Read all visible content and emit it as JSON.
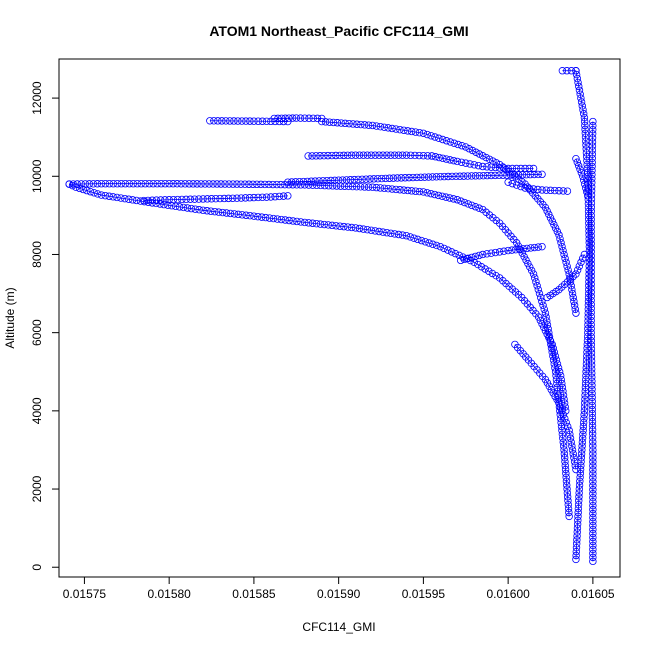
{
  "chart_data": {
    "type": "scatter",
    "title": "ATOM1 Northeast_Pacific CFC114_GMI",
    "xlabel": "CFC114_GMI",
    "ylabel": "Altitude (m)",
    "xlim": [
      0.015735,
      0.016066
    ],
    "ylim": [
      -250,
      13000
    ],
    "x_ticks": [
      0.01575,
      0.0158,
      0.01585,
      0.0159,
      0.01595,
      0.016,
      0.01605
    ],
    "x_tick_labels": [
      "0.01575",
      "0.01580",
      "0.01585",
      "0.01590",
      "0.01595",
      "0.01600",
      "0.01605"
    ],
    "y_ticks": [
      0,
      2000,
      4000,
      6000,
      8000,
      10000,
      12000
    ],
    "y_tick_labels": [
      "0",
      "2000",
      "4000",
      "6000",
      "8000",
      "10000",
      "12000"
    ],
    "grid": false,
    "legend": "none",
    "marker": "open-circle",
    "color": "#0000ff",
    "segments": [
      {
        "points": [
          [
            0.01604,
            200
          ],
          [
            0.016042,
            2000
          ],
          [
            0.016045,
            4000
          ],
          [
            0.016047,
            6000
          ],
          [
            0.016048,
            8000
          ],
          [
            0.016047,
            10000
          ],
          [
            0.016045,
            11500
          ],
          [
            0.01604,
            12700
          ]
        ]
      },
      {
        "points": [
          [
            0.01605,
            150
          ],
          [
            0.01605,
            3000
          ],
          [
            0.016049,
            6000
          ],
          [
            0.016049,
            9000
          ],
          [
            0.01605,
            11400
          ]
        ]
      },
      {
        "points": [
          [
            0.016032,
            12700
          ],
          [
            0.01604,
            12700
          ]
        ]
      },
      {
        "points": [
          [
            0.016036,
            1300
          ],
          [
            0.016033,
            3000
          ],
          [
            0.016028,
            5000
          ],
          [
            0.016022,
            6500
          ],
          [
            0.016015,
            7500
          ],
          [
            0.016005,
            8300
          ],
          [
            0.015995,
            8800
          ],
          [
            0.015985,
            9150
          ],
          [
            0.01597,
            9400
          ],
          [
            0.01595,
            9600
          ],
          [
            0.01592,
            9720
          ],
          [
            0.01588,
            9780
          ],
          [
            0.01584,
            9800
          ],
          [
            0.0158,
            9810
          ],
          [
            0.01576,
            9810
          ],
          [
            0.015741,
            9800
          ]
        ]
      },
      {
        "points": [
          [
            0.015741,
            9800
          ],
          [
            0.015745,
            9720
          ],
          [
            0.01576,
            9520
          ],
          [
            0.01579,
            9320
          ],
          [
            0.01582,
            9130
          ],
          [
            0.01585,
            8980
          ],
          [
            0.01588,
            8820
          ],
          [
            0.01591,
            8680
          ],
          [
            0.01594,
            8480
          ],
          [
            0.01596,
            8200
          ],
          [
            0.01598,
            7800
          ],
          [
            0.015995,
            7400
          ],
          [
            0.016008,
            6900
          ],
          [
            0.016018,
            6400
          ],
          [
            0.016026,
            5700
          ],
          [
            0.016031,
            4900
          ],
          [
            0.016034,
            4000
          ]
        ]
      },
      {
        "points": [
          [
            0.016004,
            5700
          ],
          [
            0.016012,
            5300
          ],
          [
            0.016022,
            4800
          ],
          [
            0.01603,
            4200
          ],
          [
            0.016036,
            3500
          ],
          [
            0.01604,
            2500
          ]
        ]
      },
      {
        "points": [
          [
            0.015785,
            9380
          ],
          [
            0.0158,
            9400
          ],
          [
            0.01582,
            9420
          ],
          [
            0.01584,
            9440
          ],
          [
            0.01586,
            9470
          ],
          [
            0.01587,
            9500
          ]
        ]
      },
      {
        "points": [
          [
            0.01587,
            9850
          ],
          [
            0.0159,
            9900
          ],
          [
            0.01593,
            9950
          ],
          [
            0.01596,
            9990
          ],
          [
            0.01599,
            10020
          ],
          [
            0.01602,
            10050
          ]
        ]
      },
      {
        "points": [
          [
            0.016,
            9850
          ],
          [
            0.01601,
            9700
          ],
          [
            0.01602,
            9650
          ],
          [
            0.016035,
            9620
          ]
        ]
      },
      {
        "points": [
          [
            0.015882,
            10520
          ],
          [
            0.01591,
            10540
          ],
          [
            0.01594,
            10540
          ],
          [
            0.015955,
            10520
          ]
        ]
      },
      {
        "points": [
          [
            0.015955,
            10520
          ],
          [
            0.01597,
            10380
          ],
          [
            0.015985,
            10250
          ],
          [
            0.016,
            10200
          ],
          [
            0.016015,
            10200
          ]
        ]
      },
      {
        "points": [
          [
            0.015824,
            11420
          ],
          [
            0.01585,
            11410
          ],
          [
            0.01587,
            11400
          ]
        ]
      },
      {
        "points": [
          [
            0.015862,
            11480
          ],
          [
            0.015875,
            11490
          ],
          [
            0.01589,
            11480
          ]
        ]
      },
      {
        "points": [
          [
            0.01589,
            11400
          ],
          [
            0.01592,
            11300
          ],
          [
            0.01595,
            11100
          ],
          [
            0.015975,
            10750
          ],
          [
            0.015995,
            10300
          ],
          [
            0.01601,
            9800
          ],
          [
            0.016022,
            9200
          ],
          [
            0.01603,
            8500
          ],
          [
            0.016036,
            7500
          ],
          [
            0.01604,
            6500
          ]
        ]
      },
      {
        "points": [
          [
            0.015972,
            7850
          ],
          [
            0.015985,
            8000
          ],
          [
            0.016,
            8100
          ],
          [
            0.01602,
            8200
          ]
        ]
      },
      {
        "points": [
          [
            0.01604,
            10450
          ],
          [
            0.016044,
            10000
          ],
          [
            0.016047,
            9500
          ]
        ]
      },
      {
        "points": [
          [
            0.016023,
            6900
          ],
          [
            0.01603,
            7100
          ],
          [
            0.01604,
            7500
          ],
          [
            0.016045,
            8000
          ]
        ]
      }
    ]
  }
}
